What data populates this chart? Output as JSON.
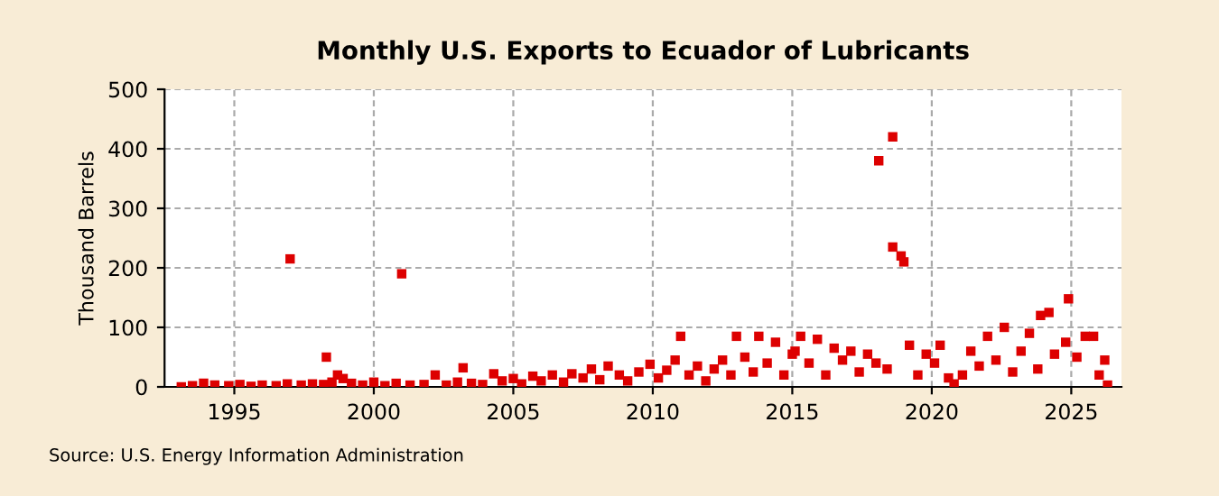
{
  "chart_data": {
    "type": "scatter",
    "title": "Monthly U.S. Exports to Ecuador of Lubricants",
    "ylabel": "Thousand Barrels",
    "annotations": [
      "Source: U.S. Energy Information Administration"
    ],
    "x": [
      1993.1,
      1993.5,
      1993.9,
      1994.3,
      1994.8,
      1995.2,
      1995.6,
      1996.0,
      1996.5,
      1996.9,
      1997.0,
      1997.4,
      1997.8,
      1998.2,
      1998.3,
      1998.5,
      1998.7,
      1998.9,
      1999.2,
      1999.6,
      2000.0,
      2000.4,
      2000.8,
      2001.0,
      2001.3,
      2001.8,
      2002.2,
      2002.6,
      2003.0,
      2003.2,
      2003.5,
      2003.9,
      2004.3,
      2004.6,
      2005.0,
      2005.3,
      2005.7,
      2006.0,
      2006.4,
      2006.8,
      2007.1,
      2007.5,
      2007.8,
      2008.1,
      2008.4,
      2008.8,
      2009.1,
      2009.5,
      2009.9,
      2010.2,
      2010.5,
      2010.8,
      2011.0,
      2011.3,
      2011.6,
      2011.9,
      2012.2,
      2012.5,
      2012.8,
      2013.0,
      2013.3,
      2013.6,
      2013.8,
      2014.1,
      2014.4,
      2014.7,
      2015.0,
      2015.1,
      2015.3,
      2015.6,
      2015.9,
      2016.2,
      2016.5,
      2016.8,
      2017.1,
      2017.4,
      2017.7,
      2018.0,
      2018.1,
      2018.4,
      2018.6,
      2018.6,
      2018.9,
      2019.0,
      2019.2,
      2019.5,
      2019.8,
      2020.1,
      2020.3,
      2020.6,
      2020.8,
      2021.1,
      2021.4,
      2021.7,
      2022.0,
      2022.3,
      2022.6,
      2022.9,
      2023.2,
      2023.5,
      2023.8,
      2023.9,
      2024.2,
      2024.4,
      2024.8,
      2024.9,
      2025.2,
      2025.5,
      2025.8,
      2026.0,
      2026.2,
      2026.3
    ],
    "values": [
      0,
      2,
      6,
      3,
      2,
      4,
      1,
      3,
      2,
      5,
      215,
      3,
      5,
      4,
      50,
      8,
      20,
      14,
      6,
      3,
      8,
      2,
      6,
      190,
      3,
      4,
      20,
      3,
      8,
      32,
      6,
      4,
      22,
      10,
      14,
      5,
      18,
      10,
      20,
      8,
      22,
      15,
      30,
      12,
      35,
      20,
      10,
      25,
      38,
      15,
      28,
      45,
      85,
      20,
      35,
      10,
      30,
      45,
      20,
      85,
      50,
      25,
      85,
      40,
      75,
      20,
      55,
      60,
      85,
      40,
      80,
      20,
      65,
      45,
      60,
      25,
      55,
      40,
      380,
      30,
      420,
      235,
      220,
      210,
      70,
      20,
      55,
      40,
      70,
      15,
      5,
      20,
      60,
      35,
      85,
      45,
      100,
      25,
      60,
      90,
      30,
      120,
      125,
      55,
      75,
      148,
      50,
      85,
      85,
      20,
      45,
      3
    ],
    "color": "#dd0000",
    "marker": "square",
    "xlim": [
      1992.5,
      2026.8
    ],
    "xticks": [
      1995,
      2000,
      2005,
      2010,
      2015,
      2020,
      2025
    ],
    "ylim": [
      0,
      500
    ],
    "yticks": [
      0,
      100,
      200,
      300,
      400,
      500
    ],
    "grid": true
  }
}
